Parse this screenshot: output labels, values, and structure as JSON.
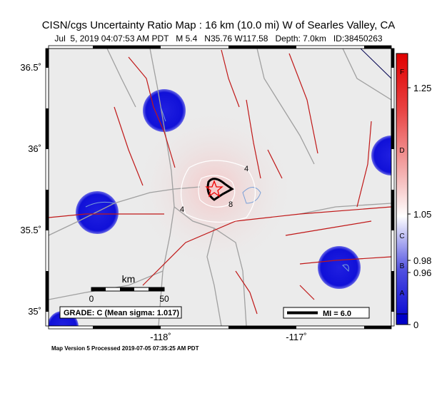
{
  "header": {
    "title": "CISN/cgs Uncertainty Ratio Map : 16 km (10.0 mi) W of Searles Valley, CA",
    "subtitle": "Jul  5, 2019 04:07:53 AM PDT   M 5.4   N35.76 W117.58   Depth: 7.0km   ID:38450263"
  },
  "map": {
    "lat_labels": [
      "36.5˚",
      "36˚",
      "35.5˚",
      "35˚"
    ],
    "lon_labels": [
      "-118˚",
      "-117˚"
    ],
    "contour_labels": [
      "4",
      "4",
      "8"
    ],
    "scale_bar": {
      "unit": "km",
      "labels": [
        "0",
        "50"
      ]
    },
    "grade": "GRADE: C (Mean sigma: 1.017)",
    "legend": "MI = 6.0"
  },
  "colorbar": {
    "grades": [
      "F",
      "D",
      "C",
      "B",
      "A"
    ],
    "ticks": [
      1.25,
      1.05,
      0.98,
      0.96,
      0
    ]
  },
  "footer": "Map Version 5 Processed 2019-07-05 07:35:25 AM PDT"
}
